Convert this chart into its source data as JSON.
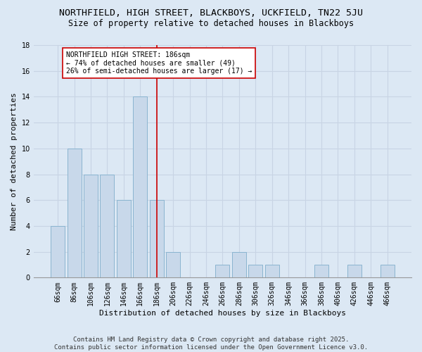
{
  "title1": "NORTHFIELD, HIGH STREET, BLACKBOYS, UCKFIELD, TN22 5JU",
  "title2": "Size of property relative to detached houses in Blackboys",
  "xlabel": "Distribution of detached houses by size in Blackboys",
  "ylabel": "Number of detached properties",
  "categories": [
    "66sqm",
    "86sqm",
    "106sqm",
    "126sqm",
    "146sqm",
    "166sqm",
    "186sqm",
    "206sqm",
    "226sqm",
    "246sqm",
    "266sqm",
    "286sqm",
    "306sqm",
    "326sqm",
    "346sqm",
    "366sqm",
    "386sqm",
    "406sqm",
    "426sqm",
    "446sqm",
    "466sqm"
  ],
  "values": [
    4,
    10,
    8,
    8,
    6,
    14,
    6,
    2,
    0,
    0,
    1,
    2,
    1,
    1,
    0,
    0,
    1,
    0,
    1,
    0,
    1
  ],
  "bar_color": "#c8d8ea",
  "bar_edge_color": "#8ab4d0",
  "vline_color": "#cc0000",
  "annotation_text_line1": "NORTHFIELD HIGH STREET: 186sqm",
  "annotation_text_line2": "← 74% of detached houses are smaller (49)",
  "annotation_text_line3": "26% of semi-detached houses are larger (17) →",
  "annotation_box_facecolor": "#ffffff",
  "annotation_box_edgecolor": "#cc0000",
  "ylim": [
    0,
    18
  ],
  "yticks": [
    0,
    2,
    4,
    6,
    8,
    10,
    12,
    14,
    16,
    18
  ],
  "grid_color": "#c8d4e4",
  "bg_color": "#dce8f4",
  "footer": "Contains HM Land Registry data © Crown copyright and database right 2025.\nContains public sector information licensed under the Open Government Licence v3.0.",
  "title1_fontsize": 9.5,
  "title2_fontsize": 8.5,
  "xlabel_fontsize": 8,
  "ylabel_fontsize": 8,
  "tick_fontsize": 7,
  "annotation_fontsize": 7,
  "footer_fontsize": 6.5
}
